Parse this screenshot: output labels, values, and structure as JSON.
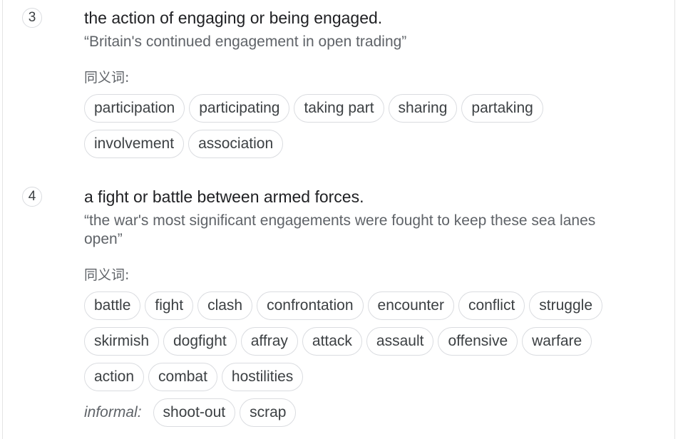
{
  "senses": [
    {
      "number": "3",
      "definition": "the action of engaging or being engaged.",
      "example": "“Britain's continued engagement in open trading”",
      "synonyms_label": "同义词:",
      "chip_rows": [
        [
          "participation",
          "participating",
          "taking part",
          "sharing",
          "partaking"
        ],
        [
          "involvement",
          "association"
        ]
      ]
    },
    {
      "number": "4",
      "definition": "a fight or battle between armed forces.",
      "example": "“the war's most significant engagements were fought to keep these sea lanes open”",
      "synonyms_label": "同义词:",
      "chip_rows": [
        [
          "battle",
          "fight",
          "clash",
          "confrontation",
          "encounter",
          "conflict",
          "struggle"
        ],
        [
          "skirmish",
          "dogfight",
          "affray",
          "attack",
          "assault",
          "offensive",
          "warfare"
        ],
        [
          "action",
          "combat",
          "hostilities"
        ]
      ],
      "informal_label": "informal:",
      "informal_chips": [
        "shoot-out",
        "scrap"
      ]
    }
  ]
}
